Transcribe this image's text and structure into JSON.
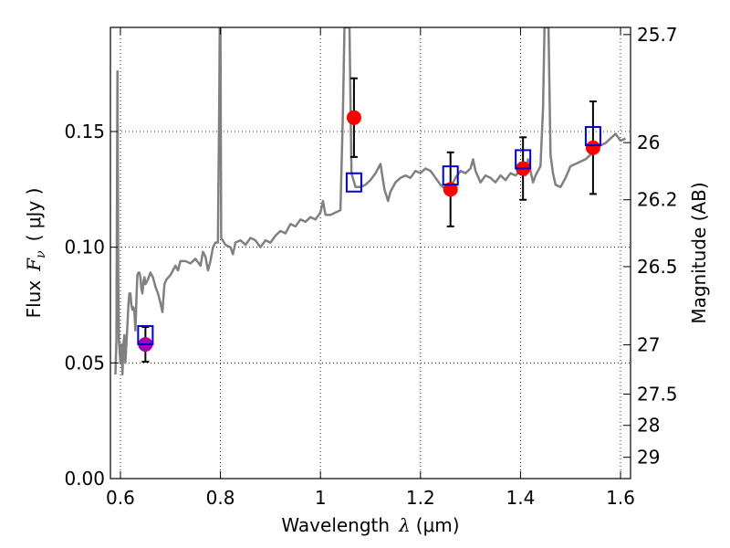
{
  "chart_data": {
    "type": "scatter",
    "xlabel": {
      "prefix": "Wavelength",
      "symbol": "λ",
      "unit": "(μm)"
    },
    "ylabel": {
      "prefix": "Flux",
      "symbol": "F",
      "subscript": "ν",
      "unit": "( μJy )"
    },
    "y2label": "Magnitude (AB)",
    "xlim": [
      0.58,
      1.62
    ],
    "ylim": [
      0.0,
      0.195
    ],
    "grid": true,
    "x_ticks": [
      {
        "value": 0.6,
        "label": "0.6"
      },
      {
        "value": 0.8,
        "label": "0.8"
      },
      {
        "value": 1.0,
        "label": "1"
      },
      {
        "value": 1.2,
        "label": "1.2"
      },
      {
        "value": 1.4,
        "label": "1.4"
      },
      {
        "value": 1.6,
        "label": "1.6"
      }
    ],
    "y_ticks": [
      {
        "value": 0.0,
        "label": "0.00"
      },
      {
        "value": 0.05,
        "label": "0.05"
      },
      {
        "value": 0.1,
        "label": "0.10"
      },
      {
        "value": 0.15,
        "label": "0.15"
      }
    ],
    "y2_ticks": [
      {
        "flux": 0.1919,
        "label": "25.7"
      },
      {
        "flux": 0.1452,
        "label": "26"
      },
      {
        "flux": 0.1205,
        "label": "26.2"
      },
      {
        "flux": 0.0916,
        "label": "26.5"
      },
      {
        "flux": 0.0578,
        "label": "27"
      },
      {
        "flux": 0.0365,
        "label": "27.5"
      },
      {
        "flux": 0.023,
        "label": "28"
      },
      {
        "flux": 0.0092,
        "label": "29"
      }
    ],
    "model_spectrum": {
      "color": "#808080",
      "points": [
        [
          0.59,
          0.045
        ],
        [
          0.592,
          0.06
        ],
        [
          0.594,
          0.176
        ],
        [
          0.5955,
          0.09
        ],
        [
          0.597,
          0.06
        ],
        [
          0.5985,
          0.055
        ],
        [
          0.6,
          0.05
        ],
        [
          0.602,
          0.058
        ],
        [
          0.604,
          0.045
        ],
        [
          0.606,
          0.058
        ],
        [
          0.608,
          0.062
        ],
        [
          0.61,
          0.05
        ],
        [
          0.612,
          0.058
        ],
        [
          0.614,
          0.066
        ],
        [
          0.616,
          0.075
        ],
        [
          0.618,
          0.08
        ],
        [
          0.62,
          0.08
        ],
        [
          0.622,
          0.075
        ],
        [
          0.624,
          0.073
        ],
        [
          0.626,
          0.074
        ],
        [
          0.628,
          0.072
        ],
        [
          0.63,
          0.064
        ],
        [
          0.632,
          0.078
        ],
        [
          0.634,
          0.088
        ],
        [
          0.636,
          0.089
        ],
        [
          0.638,
          0.089
        ],
        [
          0.64,
          0.087
        ],
        [
          0.642,
          0.082
        ],
        [
          0.644,
          0.08
        ],
        [
          0.646,
          0.085
        ],
        [
          0.648,
          0.087
        ],
        [
          0.65,
          0.084
        ],
        [
          0.655,
          0.086
        ],
        [
          0.66,
          0.089
        ],
        [
          0.665,
          0.087
        ],
        [
          0.67,
          0.083
        ],
        [
          0.675,
          0.08
        ],
        [
          0.68,
          0.076
        ],
        [
          0.684,
          0.072
        ],
        [
          0.688,
          0.084
        ],
        [
          0.692,
          0.086
        ],
        [
          0.7,
          0.088
        ],
        [
          0.71,
          0.092
        ],
        [
          0.715,
          0.09
        ],
        [
          0.72,
          0.094
        ],
        [
          0.73,
          0.094
        ],
        [
          0.74,
          0.093
        ],
        [
          0.75,
          0.095
        ],
        [
          0.76,
          0.092
        ],
        [
          0.765,
          0.098
        ],
        [
          0.77,
          0.096
        ],
        [
          0.775,
          0.09
        ],
        [
          0.78,
          0.094
        ],
        [
          0.785,
          0.1
        ],
        [
          0.79,
          0.102
        ],
        [
          0.795,
          0.102
        ],
        [
          0.7975,
          0.16
        ],
        [
          0.7985,
          0.195
        ],
        [
          0.8,
          0.195
        ],
        [
          0.8015,
          0.104
        ],
        [
          0.81,
          0.101
        ],
        [
          0.82,
          0.1
        ],
        [
          0.825,
          0.097
        ],
        [
          0.83,
          0.102
        ],
        [
          0.84,
          0.103
        ],
        [
          0.85,
          0.101
        ],
        [
          0.86,
          0.104
        ],
        [
          0.87,
          0.103
        ],
        [
          0.88,
          0.1
        ],
        [
          0.89,
          0.103
        ],
        [
          0.9,
          0.102
        ],
        [
          0.91,
          0.105
        ],
        [
          0.92,
          0.107
        ],
        [
          0.93,
          0.106
        ],
        [
          0.94,
          0.11
        ],
        [
          0.95,
          0.109
        ],
        [
          0.96,
          0.112
        ],
        [
          0.97,
          0.111
        ],
        [
          0.98,
          0.113
        ],
        [
          0.99,
          0.112
        ],
        [
          1.0,
          0.115
        ],
        [
          1.005,
          0.12
        ],
        [
          1.01,
          0.114
        ],
        [
          1.02,
          0.114
        ],
        [
          1.03,
          0.115
        ],
        [
          1.04,
          0.116
        ],
        [
          1.045,
          0.16
        ],
        [
          1.048,
          0.195
        ],
        [
          1.058,
          0.195
        ],
        [
          1.062,
          0.132
        ],
        [
          1.07,
          0.126
        ],
        [
          1.08,
          0.126
        ],
        [
          1.09,
          0.127
        ],
        [
          1.1,
          0.129
        ],
        [
          1.11,
          0.132
        ],
        [
          1.12,
          0.136
        ],
        [
          1.128,
          0.125
        ],
        [
          1.135,
          0.12
        ],
        [
          1.14,
          0.124
        ],
        [
          1.15,
          0.128
        ],
        [
          1.16,
          0.13
        ],
        [
          1.17,
          0.131
        ],
        [
          1.18,
          0.13
        ],
        [
          1.19,
          0.133
        ],
        [
          1.2,
          0.132
        ],
        [
          1.21,
          0.134
        ],
        [
          1.22,
          0.133
        ],
        [
          1.23,
          0.13
        ],
        [
          1.24,
          0.127
        ],
        [
          1.25,
          0.125
        ],
        [
          1.26,
          0.126
        ],
        [
          1.27,
          0.13
        ],
        [
          1.28,
          0.133
        ],
        [
          1.29,
          0.132
        ],
        [
          1.3,
          0.134
        ],
        [
          1.305,
          0.138
        ],
        [
          1.31,
          0.133
        ],
        [
          1.32,
          0.128
        ],
        [
          1.33,
          0.131
        ],
        [
          1.34,
          0.13
        ],
        [
          1.35,
          0.128
        ],
        [
          1.36,
          0.131
        ],
        [
          1.37,
          0.129
        ],
        [
          1.38,
          0.132
        ],
        [
          1.39,
          0.131
        ],
        [
          1.4,
          0.133
        ],
        [
          1.41,
          0.131
        ],
        [
          1.415,
          0.138
        ],
        [
          1.42,
          0.133
        ],
        [
          1.425,
          0.128
        ],
        [
          1.43,
          0.131
        ],
        [
          1.44,
          0.135
        ],
        [
          1.445,
          0.16
        ],
        [
          1.448,
          0.195
        ],
        [
          1.456,
          0.195
        ],
        [
          1.46,
          0.14
        ],
        [
          1.465,
          0.132
        ],
        [
          1.47,
          0.127
        ],
        [
          1.48,
          0.126
        ],
        [
          1.49,
          0.13
        ],
        [
          1.5,
          0.135
        ],
        [
          1.51,
          0.136
        ],
        [
          1.52,
          0.137
        ],
        [
          1.53,
          0.138
        ],
        [
          1.54,
          0.14
        ],
        [
          1.55,
          0.142
        ],
        [
          1.56,
          0.144
        ],
        [
          1.57,
          0.145
        ],
        [
          1.58,
          0.147
        ],
        [
          1.59,
          0.149
        ],
        [
          1.6,
          0.146
        ],
        [
          1.61,
          0.147
        ]
      ]
    },
    "observed": [
      {
        "x": 0.65,
        "y": 0.058,
        "err": 0.0075,
        "color": "#aa00aa"
      },
      {
        "x": 1.067,
        "y": 0.156,
        "err": 0.017,
        "color": "#ff0000"
      },
      {
        "x": 1.26,
        "y": 0.125,
        "err": 0.016,
        "color": "#ff0000"
      },
      {
        "x": 1.405,
        "y": 0.134,
        "err": 0.0135,
        "color": "#ff0000"
      },
      {
        "x": 1.545,
        "y": 0.143,
        "err": 0.02,
        "color": "#ff0000"
      }
    ],
    "model_photometry": {
      "color": "#0000cc",
      "points": [
        {
          "x": 0.65,
          "y": 0.062
        },
        {
          "x": 1.067,
          "y": 0.128
        },
        {
          "x": 1.26,
          "y": 0.131
        },
        {
          "x": 1.405,
          "y": 0.138
        },
        {
          "x": 1.545,
          "y": 0.148
        }
      ]
    }
  }
}
